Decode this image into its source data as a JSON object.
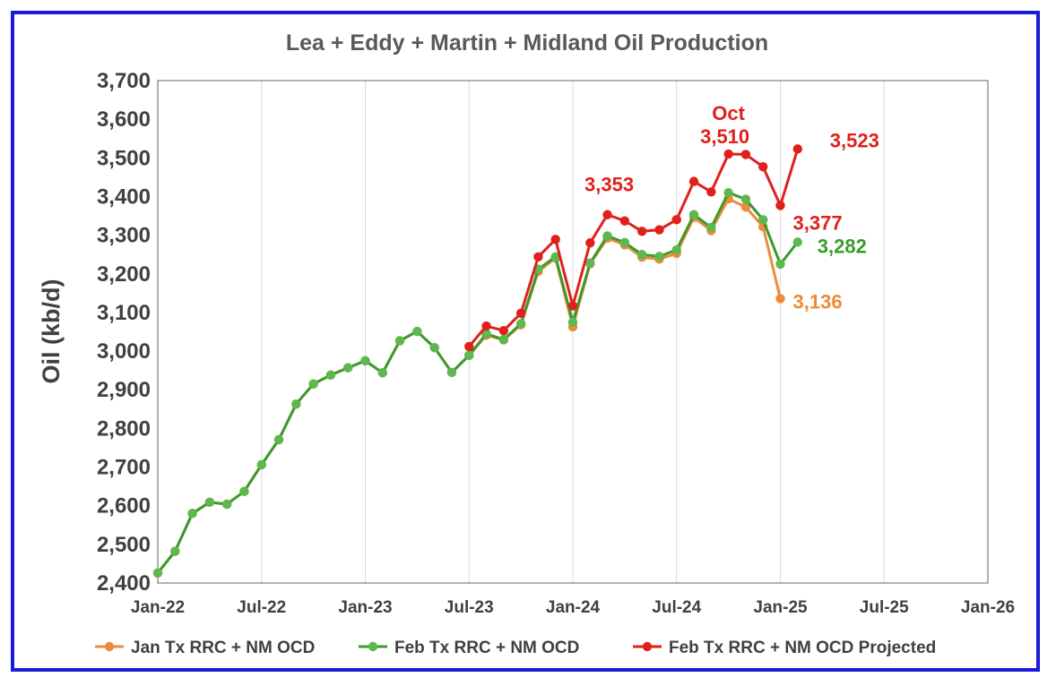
{
  "chart_data": {
    "type": "line",
    "title": "Lea + Eddy + Martin + Midland Oil Production",
    "ylabel": "Oil (kb/d)",
    "xlabel": "",
    "ylim": [
      2400,
      3700
    ],
    "yticks": [
      "2,400",
      "2,500",
      "2,600",
      "2,700",
      "2,800",
      "2,900",
      "3,000",
      "3,100",
      "3,200",
      "3,300",
      "3,400",
      "3,500",
      "3,600",
      "3,700"
    ],
    "xlim": [
      "2022-01",
      "2026-01"
    ],
    "xticks": [
      {
        "date": "2022-01",
        "label": "Jan-22"
      },
      {
        "date": "2022-07",
        "label": "Jul-22"
      },
      {
        "date": "2023-01",
        "label": "Jan-23"
      },
      {
        "date": "2023-07",
        "label": "Jul-23"
      },
      {
        "date": "2024-01",
        "label": "Jan-24"
      },
      {
        "date": "2024-07",
        "label": "Jul-24"
      },
      {
        "date": "2025-01",
        "label": "Jan-25"
      },
      {
        "date": "2025-07",
        "label": "Jul-25"
      },
      {
        "date": "2026-01",
        "label": "Jan-26"
      }
    ],
    "grid": "vertical",
    "legend_position": "bottom",
    "series": [
      {
        "name": "Jan Tx RRC + NM OCD",
        "color": "#ed8b3a",
        "x": [
          "2022-01",
          "2022-02",
          "2022-03",
          "2022-04",
          "2022-05",
          "2022-06",
          "2022-07",
          "2022-08",
          "2022-09",
          "2022-10",
          "2022-11",
          "2022-12",
          "2023-01",
          "2023-02",
          "2023-03",
          "2023-04",
          "2023-05",
          "2023-06",
          "2023-07",
          "2023-08",
          "2023-09",
          "2023-10",
          "2023-11",
          "2023-12",
          "2024-01",
          "2024-02",
          "2024-03",
          "2024-04",
          "2024-05",
          "2024-06",
          "2024-07",
          "2024-08",
          "2024-09",
          "2024-10",
          "2024-11",
          "2024-12",
          "2025-01"
        ],
        "y": [
          2426,
          2482,
          2580,
          2609,
          2604,
          2637,
          2706,
          2771,
          2863,
          2915,
          2938,
          2957,
          2975,
          2944,
          3027,
          3051,
          3009,
          2945,
          2989,
          3041,
          3029,
          3068,
          3206,
          3241,
          3063,
          3226,
          3292,
          3275,
          3243,
          3238,
          3253,
          3346,
          3312,
          3394,
          3373,
          3322,
          3136
        ]
      },
      {
        "name": "Feb Tx RRC + NM OCD",
        "color": "#5cb84f",
        "line_color": "#3a9a2c",
        "x": [
          "2022-01",
          "2022-02",
          "2022-03",
          "2022-04",
          "2022-05",
          "2022-06",
          "2022-07",
          "2022-08",
          "2022-09",
          "2022-10",
          "2022-11",
          "2022-12",
          "2023-01",
          "2023-02",
          "2023-03",
          "2023-04",
          "2023-05",
          "2023-06",
          "2023-07",
          "2023-08",
          "2023-09",
          "2023-10",
          "2023-11",
          "2023-12",
          "2024-01",
          "2024-02",
          "2024-03",
          "2024-04",
          "2024-05",
          "2024-06",
          "2024-07",
          "2024-08",
          "2024-09",
          "2024-10",
          "2024-11",
          "2024-12",
          "2025-01",
          "2025-02"
        ],
        "y": [
          2426,
          2482,
          2580,
          2609,
          2604,
          2637,
          2706,
          2771,
          2863,
          2915,
          2938,
          2957,
          2975,
          2944,
          3027,
          3051,
          3009,
          2945,
          2989,
          3045,
          3030,
          3071,
          3212,
          3244,
          3075,
          3228,
          3298,
          3281,
          3250,
          3245,
          3262,
          3353,
          3320,
          3410,
          3393,
          3340,
          3225,
          3282
        ]
      },
      {
        "name": "Feb Tx RRC + NM OCD Projected",
        "color": "#e0201b",
        "x": [
          "2023-07",
          "2023-08",
          "2023-09",
          "2023-10",
          "2023-11",
          "2023-12",
          "2024-01",
          "2024-02",
          "2024-03",
          "2024-04",
          "2024-05",
          "2024-06",
          "2024-07",
          "2024-08",
          "2024-09",
          "2024-10",
          "2024-11",
          "2024-12",
          "2025-01",
          "2025-02"
        ],
        "y": [
          3012,
          3065,
          3053,
          3098,
          3244,
          3289,
          3117,
          3280,
          3353,
          3337,
          3310,
          3314,
          3340,
          3439,
          3412,
          3510,
          3509,
          3477,
          3377,
          3523
        ]
      }
    ],
    "annotations": [
      {
        "text": "3,353",
        "color": "#e0201b",
        "anchor_date": "2024-03",
        "anchor_value": 3353
      },
      {
        "text": "Oct",
        "color": "#e0201b",
        "anchor_date": "2024-10",
        "anchor_value": 3510
      },
      {
        "text": "3,510",
        "color": "#e0201b",
        "anchor_date": "2024-10",
        "anchor_value": 3510
      },
      {
        "text": "3,523",
        "color": "#e0201b",
        "anchor_date": "2025-02",
        "anchor_value": 3523
      },
      {
        "text": "3,377",
        "color": "#e0201b",
        "anchor_date": "2025-01",
        "anchor_value": 3377
      },
      {
        "text": "3,282",
        "color": "#3a9a2c",
        "anchor_date": "2025-02",
        "anchor_value": 3282
      },
      {
        "text": "3,136",
        "color": "#ed8b3a",
        "anchor_date": "2025-01",
        "anchor_value": 3136
      }
    ]
  }
}
